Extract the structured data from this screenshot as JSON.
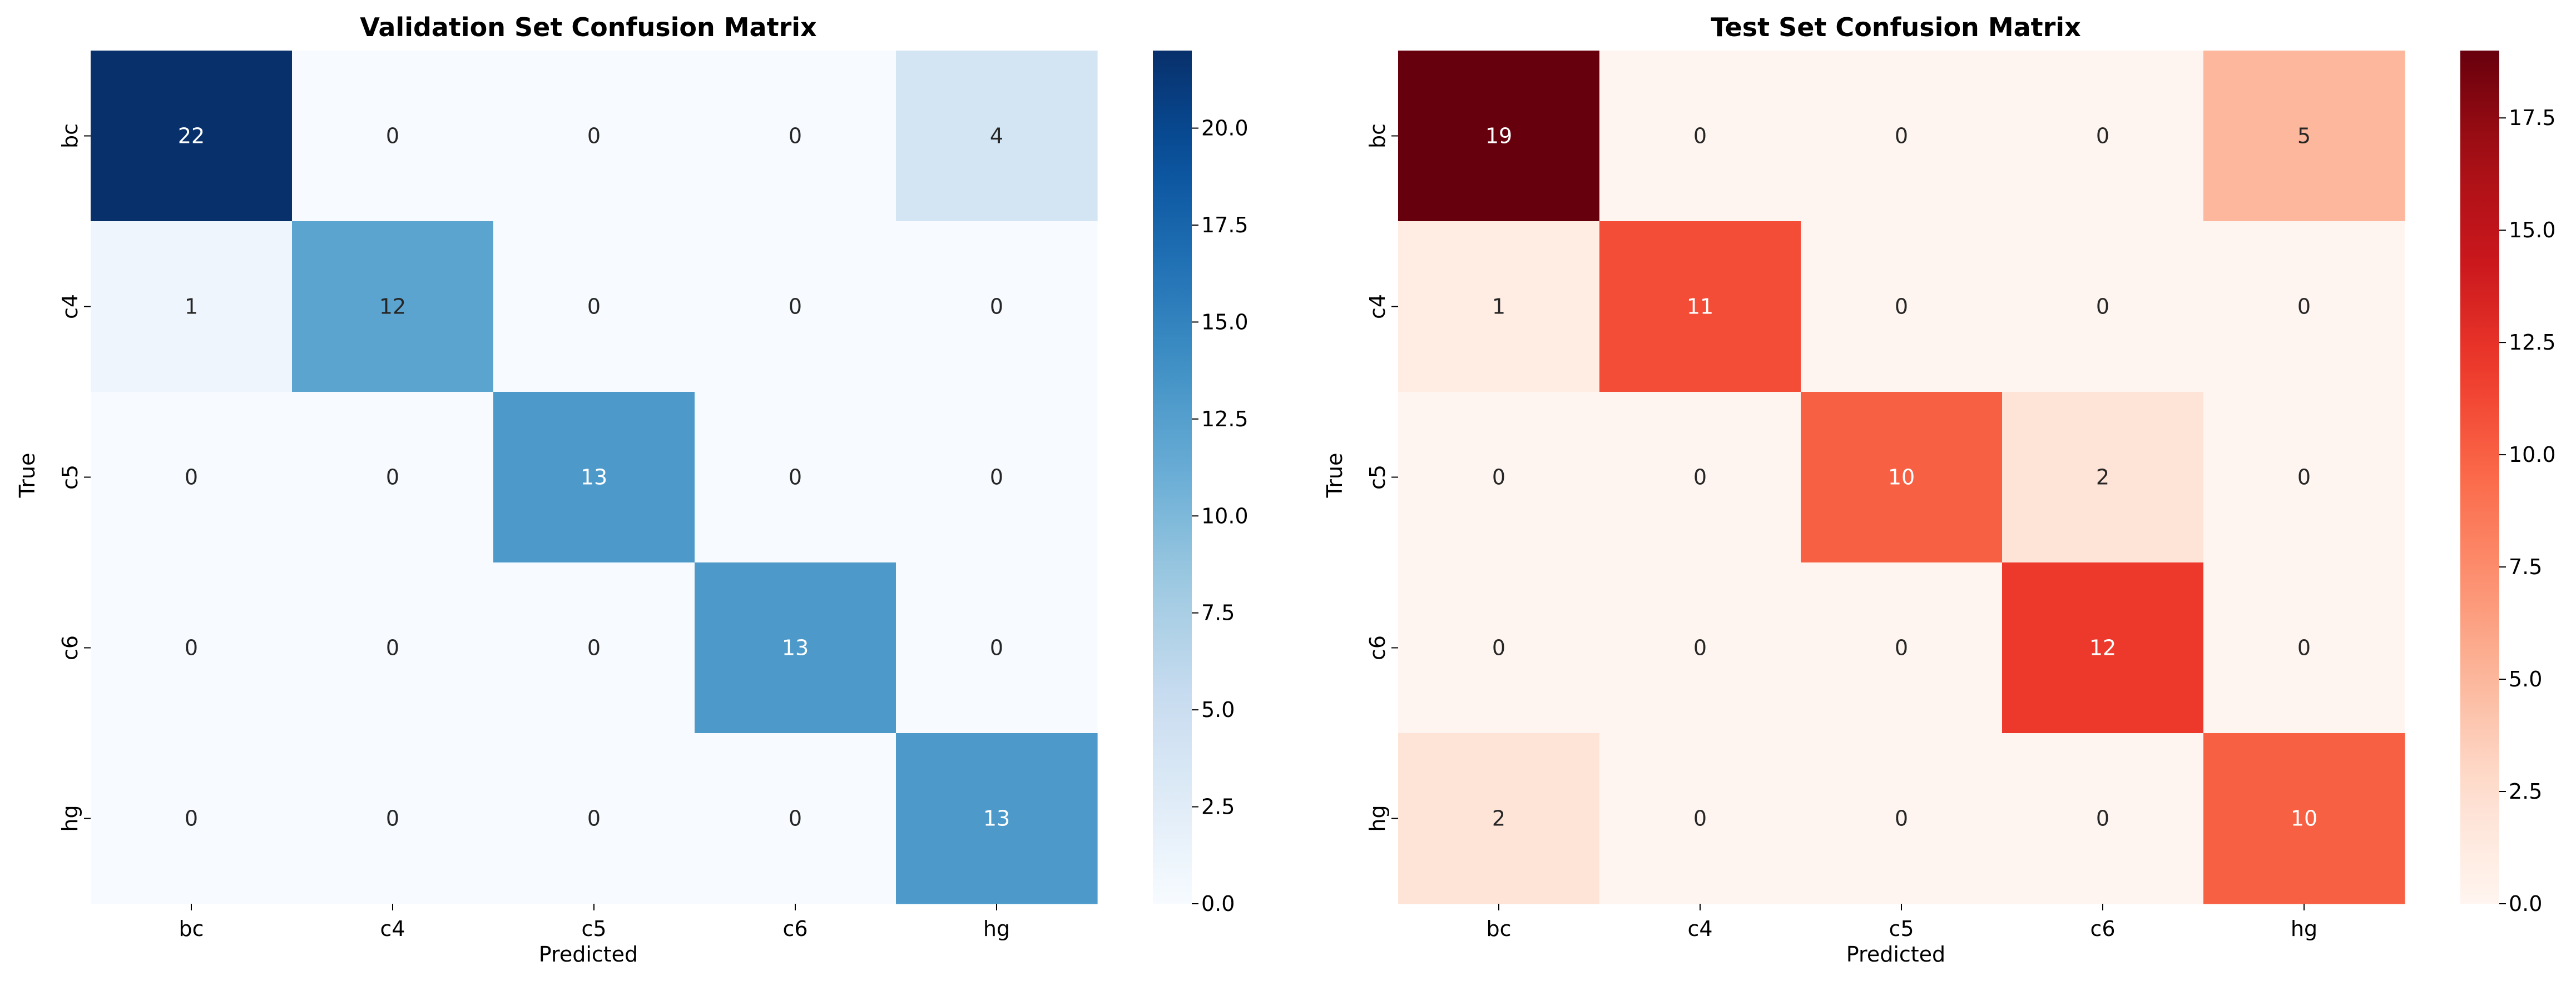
{
  "chart_data": [
    {
      "type": "heatmap",
      "title": "Validation Set Confusion Matrix",
      "xlabel": "Predicted",
      "ylabel": "True",
      "x_categories": [
        "bc",
        "c4",
        "c5",
        "c6",
        "hg"
      ],
      "y_categories": [
        "bc",
        "c4",
        "c5",
        "c6",
        "hg"
      ],
      "values": [
        [
          22,
          0,
          0,
          0,
          4
        ],
        [
          1,
          12,
          0,
          0,
          0
        ],
        [
          0,
          0,
          13,
          0,
          0
        ],
        [
          0,
          0,
          0,
          13,
          0
        ],
        [
          0,
          0,
          0,
          0,
          13
        ]
      ],
      "colormap": "Blues",
      "colorbar_range": [
        0,
        22
      ],
      "colorbar_ticks": [
        "0.0",
        "2.5",
        "5.0",
        "7.5",
        "10.0",
        "12.5",
        "15.0",
        "17.5",
        "20.0"
      ],
      "colors": {
        "low": "#f7fbff",
        "high": "#08306b"
      }
    },
    {
      "type": "heatmap",
      "title": "Test Set Confusion Matrix",
      "xlabel": "Predicted",
      "ylabel": "True",
      "x_categories": [
        "bc",
        "c4",
        "c5",
        "c6",
        "hg"
      ],
      "y_categories": [
        "bc",
        "c4",
        "c5",
        "c6",
        "hg"
      ],
      "values": [
        [
          19,
          0,
          0,
          0,
          5
        ],
        [
          1,
          11,
          0,
          0,
          0
        ],
        [
          0,
          0,
          10,
          2,
          0
        ],
        [
          0,
          0,
          0,
          12,
          0
        ],
        [
          2,
          0,
          0,
          0,
          10
        ]
      ],
      "colormap": "Reds",
      "colorbar_range": [
        0,
        19
      ],
      "colorbar_ticks": [
        "0.0",
        "2.5",
        "5.0",
        "7.5",
        "10.0",
        "12.5",
        "15.0",
        "17.5"
      ],
      "colors": {
        "low": "#fff5f0",
        "high": "#67000d"
      }
    }
  ]
}
